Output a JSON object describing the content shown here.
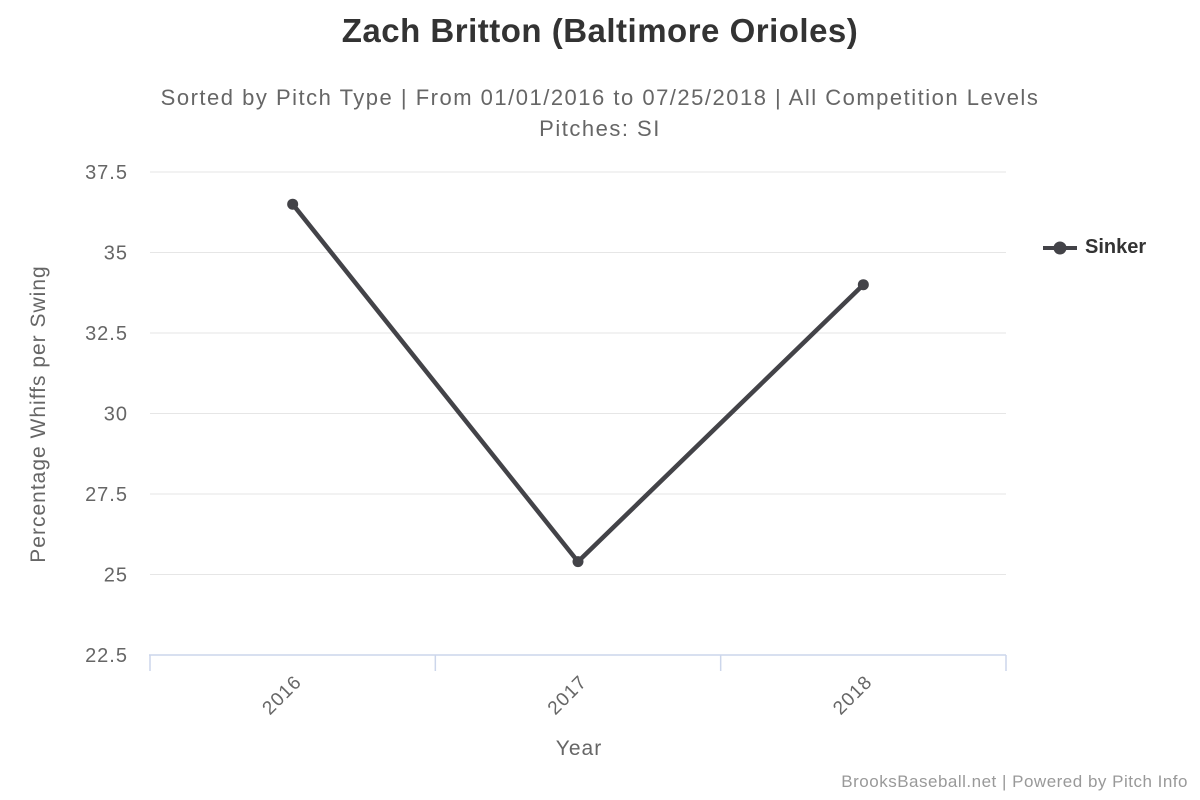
{
  "title": {
    "text": "Zach Britton (Baltimore Orioles)"
  },
  "subtitle": {
    "line1": "Sorted by Pitch Type | From 01/01/2016 to 07/25/2018 | All Competition Levels",
    "line2": "Pitches: SI"
  },
  "chart_data": {
    "type": "line",
    "categories": [
      "2016",
      "2017",
      "2018"
    ],
    "series": [
      {
        "name": "Sinker",
        "color": "#434348",
        "values": [
          36.5,
          25.4,
          34.0
        ]
      }
    ],
    "xlabel": "Year",
    "ylabel": "Percentage Whiffs per Swing",
    "ylim": [
      22.5,
      37.5
    ],
    "ytick_step": 2.5,
    "yticks": [
      "22.5",
      "25",
      "27.5",
      "30",
      "32.5",
      "35",
      "37.5"
    ],
    "grid": true,
    "legend_position": "right"
  },
  "legend": {
    "marker_icon": "line-circle-marker-icon"
  },
  "footer": {
    "credits": "BrooksBaseball.net | Powered by Pitch Info"
  },
  "colors": {
    "background": "#ffffff",
    "title": "#333333",
    "subtitle": "#666666",
    "axis_label": "#666666",
    "axis_title": "#666666",
    "gridline": "#e6e6e6",
    "axis_line": "#ccd6eb",
    "series": "#434348",
    "legend_text": "#333333",
    "credits": "#999999"
  }
}
